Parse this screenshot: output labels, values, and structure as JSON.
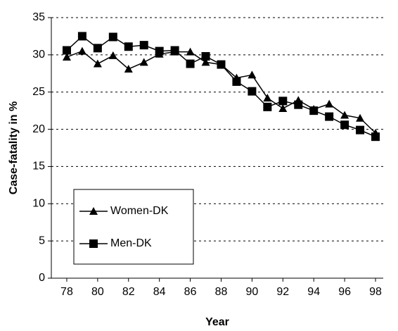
{
  "chart_data": {
    "type": "line",
    "x_label": "Year",
    "y_label": "Case-fatality in %",
    "x": [
      78,
      79,
      80,
      81,
      82,
      83,
      84,
      85,
      86,
      87,
      88,
      89,
      90,
      91,
      92,
      93,
      94,
      95,
      96,
      97,
      98
    ],
    "series": [
      {
        "name": "Women-DK",
        "color": "#000000",
        "marker": "triangle",
        "values": [
          29.7,
          30.5,
          28.8,
          29.9,
          28.1,
          29.0,
          30.1,
          30.4,
          30.4,
          29.0,
          28.7,
          26.9,
          27.3,
          24.2,
          22.8,
          23.9,
          22.7,
          23.4,
          21.9,
          21.5,
          19.5
        ]
      },
      {
        "name": "Men-DK",
        "color": "#000000",
        "marker": "square",
        "values": [
          30.6,
          32.5,
          30.9,
          32.4,
          31.1,
          31.3,
          30.5,
          30.6,
          28.8,
          29.8,
          28.7,
          26.4,
          25.1,
          23.0,
          23.8,
          23.3,
          22.5,
          21.7,
          20.6,
          19.9,
          19.0
        ]
      }
    ],
    "xlim": [
      77,
      98.5
    ],
    "xticks": [
      78,
      80,
      82,
      84,
      86,
      88,
      90,
      92,
      94,
      96,
      98
    ],
    "ylim": [
      0,
      35
    ],
    "yticks": [
      0,
      5,
      10,
      15,
      20,
      25,
      30,
      35
    ],
    "grid": true,
    "legend": "lower left"
  }
}
